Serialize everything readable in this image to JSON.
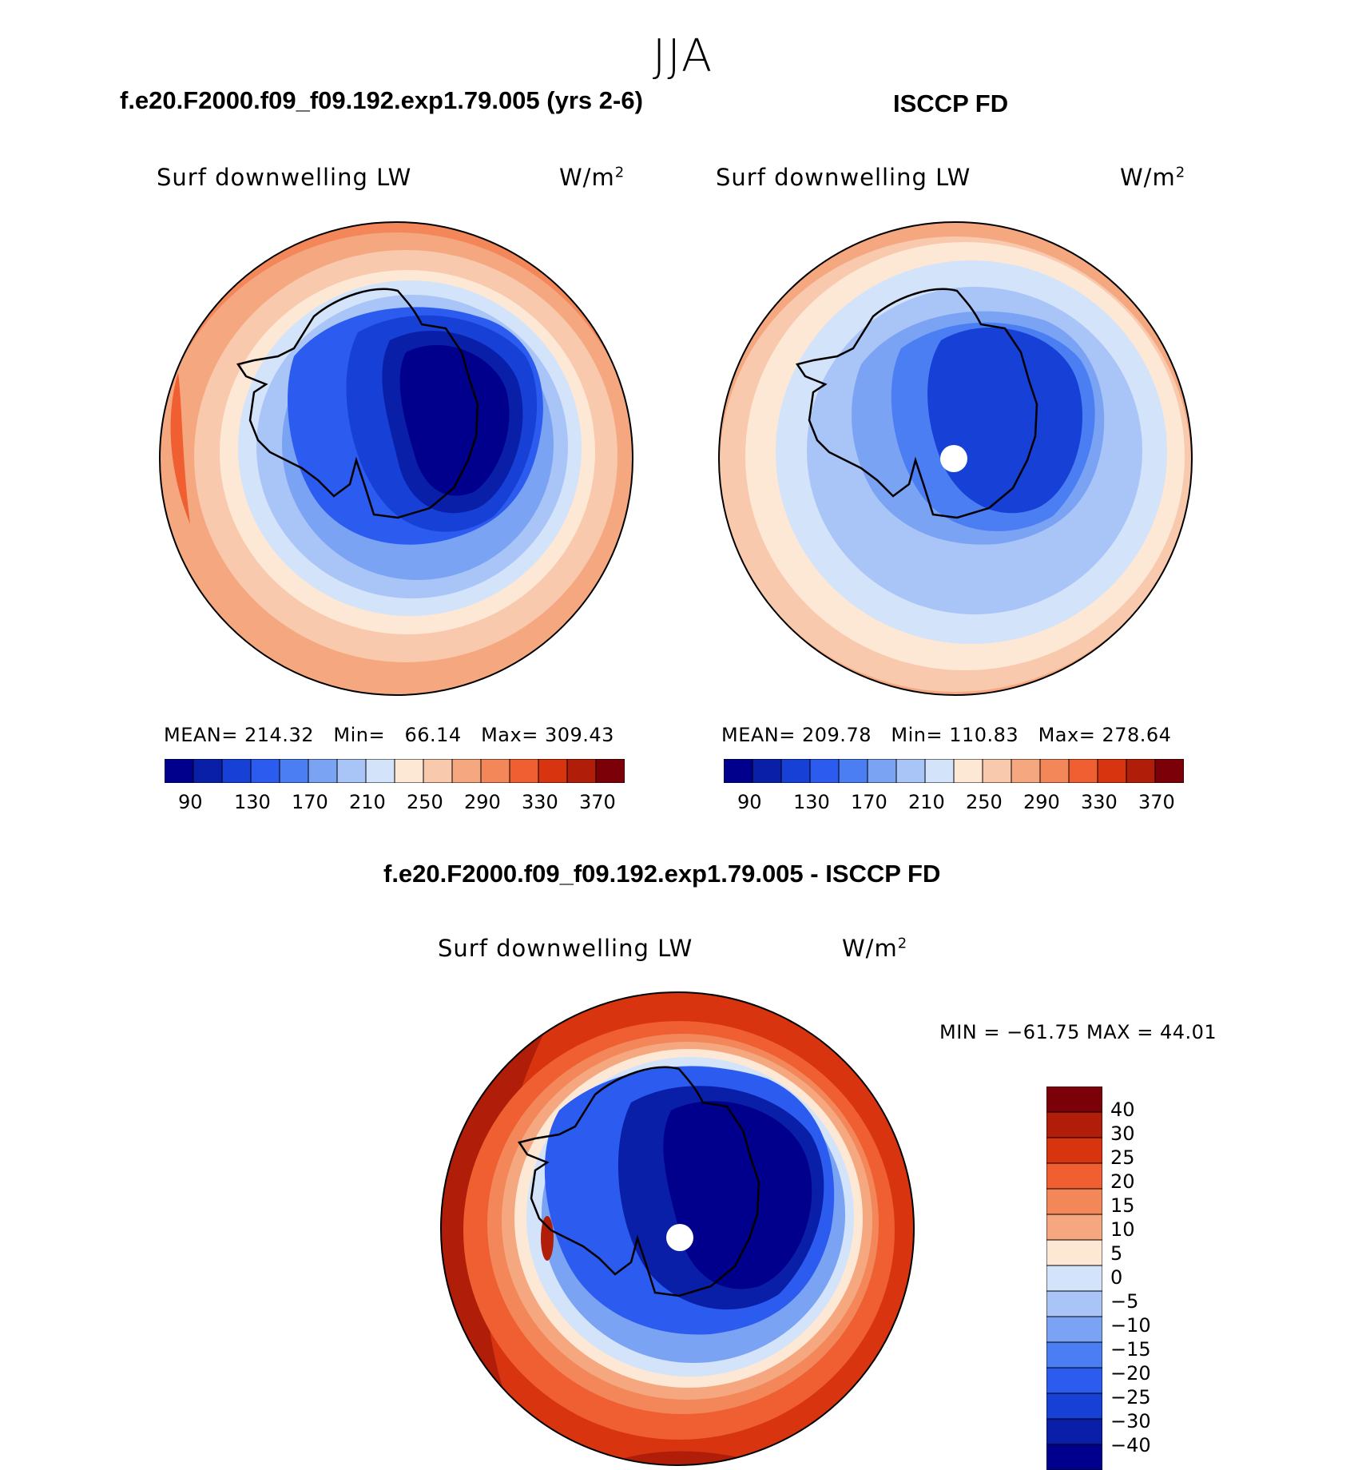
{
  "title": "JJA",
  "panels": [
    {
      "heading": "f.e20.F2000.f09_f09.192.exp1.79.005 (yrs 2-6)",
      "variable": "Surf downwelling LW",
      "units_base": "W/m",
      "units_exp": "2",
      "stats": {
        "mean_label": "MEAN=",
        "mean": "214.32",
        "min_label": "Min=",
        "min": "66.14",
        "max_label": "Max=",
        "max": "309.43"
      },
      "colorbar_ticks": [
        "90",
        "130",
        "170",
        "210",
        "250",
        "290",
        "330",
        "370"
      ]
    },
    {
      "heading": "ISCCP FD",
      "variable": "Surf downwelling LW",
      "units_base": "W/m",
      "units_exp": "2",
      "stats": {
        "mean_label": "MEAN=",
        "mean": "209.78",
        "min_label": "Min=",
        "min": "110.83",
        "max_label": "Max=",
        "max": "278.64"
      },
      "colorbar_ticks": [
        "90",
        "130",
        "170",
        "210",
        "250",
        "290",
        "330",
        "370"
      ]
    },
    {
      "heading": "f.e20.F2000.f09_f09.192.exp1.79.005 - ISCCP FD",
      "variable": "Surf downwelling LW",
      "units_base": "W/m",
      "units_exp": "2",
      "stats_line": "MIN = −61.75 MAX =   44.01",
      "colorbar_ticks": [
        "40",
        "30",
        "25",
        "20",
        "15",
        "10",
        "5",
        "0",
        "−5",
        "−10",
        "−15",
        "−20",
        "−25",
        "−30",
        "−40"
      ]
    }
  ],
  "colors": {
    "abs_scale": [
      "#00008c",
      "#0a1fa8",
      "#1640d6",
      "#2c5bef",
      "#4a7ef2",
      "#7ba3f3",
      "#a9c4f6",
      "#d3e3fa",
      "#fde8d6",
      "#f8c9ad",
      "#f5a880",
      "#f3875a",
      "#ef5f31",
      "#d8340f",
      "#b01e0a",
      "#7c0008"
    ],
    "diff_scale": [
      "#7c0008",
      "#b01e0a",
      "#d8340f",
      "#ef5f31",
      "#f3875a",
      "#f5a880",
      "#fde8d6",
      "#d3e3fa",
      "#a9c4f6",
      "#7ba3f3",
      "#4a7ef2",
      "#2c5bef",
      "#1640d6",
      "#0a1fa8",
      "#00008c"
    ]
  }
}
